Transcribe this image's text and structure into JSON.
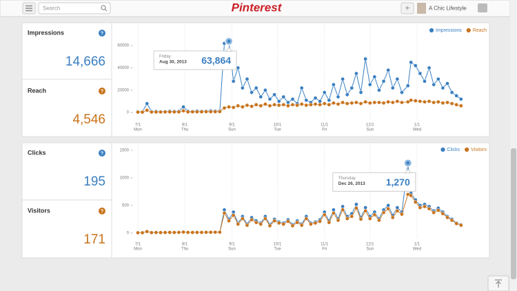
{
  "nav": {
    "search": "Search",
    "logo": "Pinterest",
    "add": "+",
    "user": "A Chic Lifestyle"
  },
  "panels": [
    {
      "metrics": [
        {
          "name": "Impressions",
          "value": "14,666",
          "help": "?"
        },
        {
          "name": "Reach",
          "value": "4,546",
          "help": "?"
        }
      ]
    },
    {
      "metrics": [
        {
          "name": "Clicks",
          "value": "195",
          "help": "?"
        },
        {
          "name": "Visitors",
          "value": "171",
          "help": "?"
        }
      ]
    }
  ],
  "chart_data": [
    {
      "type": "line",
      "x": [
        0,
        3,
        6,
        9,
        12,
        15,
        18,
        21,
        24,
        27,
        30,
        33,
        36,
        39,
        42,
        45,
        48,
        51,
        54,
        57,
        60,
        63,
        66,
        69,
        72,
        75,
        78,
        81,
        84,
        87,
        90,
        93,
        96,
        99,
        102,
        105,
        108,
        111,
        114,
        117,
        120,
        123,
        126,
        129,
        132,
        135,
        138,
        141,
        144,
        147,
        150,
        153,
        156,
        159,
        162,
        165,
        168,
        171,
        174,
        178,
        180,
        183,
        186,
        189,
        192,
        195,
        198,
        201,
        204,
        207,
        210,
        213
      ],
      "xlim": [
        0,
        214
      ],
      "xticks": [
        {
          "value": 0,
          "label": "7/1"
        },
        {
          "value": 31,
          "label": "8/1"
        },
        {
          "value": 62,
          "label": "9/1"
        },
        {
          "value": 92,
          "label": "10/1"
        },
        {
          "value": 123,
          "label": "11/1"
        },
        {
          "value": 153,
          "label": "12/1"
        },
        {
          "value": 184,
          "label": "1/1"
        }
      ],
      "xtick_weekdays": [
        "Mon",
        "Thu",
        "Sun",
        "Tue",
        "Fri",
        "Sun",
        "Wed"
      ],
      "ylim": [
        -5500,
        78000
      ],
      "yticks": [
        0,
        20000,
        40000,
        60000
      ],
      "legend": "top-right",
      "series": [
        {
          "name": "Impressions",
          "color": "#3a7fc1",
          "values": [
            800,
            700,
            8000,
            900,
            1000,
            800,
            900,
            1200,
            1000,
            1100,
            5000,
            1200,
            1000,
            1300,
            1100,
            1200,
            1500,
            1300,
            1400,
            62000,
            63864,
            28000,
            40000,
            22000,
            30000,
            18000,
            22000,
            14000,
            20000,
            12000,
            16000,
            10000,
            14000,
            9000,
            12000,
            8000,
            22000,
            11000,
            9000,
            13000,
            10000,
            18000,
            11000,
            25000,
            14000,
            30000,
            16000,
            22000,
            35000,
            18000,
            48000,
            25000,
            32000,
            20000,
            28000,
            38000,
            22000,
            30000,
            18000,
            24000,
            45000,
            42000,
            35000,
            28000,
            40000,
            25000,
            30000,
            22000,
            26000,
            18000,
            15000,
            12000
          ]
        },
        {
          "name": "Reach",
          "color": "#c8731c",
          "values": [
            300,
            300,
            2000,
            400,
            400,
            400,
            500,
            500,
            500,
            500,
            1500,
            500,
            600,
            600,
            600,
            700,
            700,
            700,
            800,
            4000,
            5000,
            4500,
            6000,
            5000,
            6500,
            5500,
            7000,
            6000,
            7500,
            6000,
            7000,
            6500,
            7000,
            6000,
            7000,
            6500,
            7500,
            6500,
            7000,
            7500,
            7000,
            8000,
            7000,
            8500,
            7500,
            9000,
            8000,
            8500,
            9000,
            8000,
            9500,
            8500,
            9000,
            9000,
            8500,
            9500,
            9000,
            10000,
            9000,
            9500,
            11000,
            10500,
            10000,
            9500,
            10000,
            9000,
            9500,
            8500,
            9000,
            8000,
            7000,
            6000
          ]
        }
      ],
      "tooltip": {
        "title": "Friday",
        "date": "Aug 30, 2013",
        "value": 63864,
        "label": "63,864"
      }
    },
    {
      "type": "line",
      "x": [
        0,
        3,
        6,
        9,
        12,
        15,
        18,
        21,
        24,
        27,
        30,
        33,
        36,
        39,
        42,
        45,
        48,
        51,
        54,
        57,
        60,
        63,
        66,
        69,
        72,
        75,
        78,
        81,
        84,
        87,
        90,
        93,
        96,
        99,
        102,
        105,
        108,
        111,
        114,
        117,
        120,
        123,
        126,
        129,
        132,
        135,
        138,
        141,
        144,
        147,
        150,
        153,
        156,
        159,
        162,
        165,
        168,
        171,
        174,
        178,
        180,
        183,
        186,
        189,
        192,
        195,
        198,
        201,
        204,
        207,
        210,
        213
      ],
      "xlim": [
        0,
        214
      ],
      "xticks": [
        {
          "value": 0,
          "label": "7/1"
        },
        {
          "value": 31,
          "label": "8/1"
        },
        {
          "value": 62,
          "label": "9/1"
        },
        {
          "value": 92,
          "label": "10/1"
        },
        {
          "value": 123,
          "label": "11/1"
        },
        {
          "value": 153,
          "label": "12/1"
        },
        {
          "value": 184,
          "label": "1/1"
        }
      ],
      "xtick_weekdays": [
        "Mon",
        "Thu",
        "Sun",
        "Tue",
        "Fri",
        "Sun",
        "Wed"
      ],
      "ylim": [
        -90,
        1600
      ],
      "yticks": [
        0,
        500,
        1000,
        1500
      ],
      "legend": "top-right",
      "series": [
        {
          "name": "Clicks",
          "color": "#3a7fc1",
          "values": [
            5,
            5,
            30,
            8,
            10,
            8,
            10,
            12,
            10,
            12,
            20,
            12,
            10,
            12,
            12,
            14,
            14,
            15,
            16,
            420,
            250,
            380,
            180,
            300,
            160,
            280,
            220,
            180,
            300,
            150,
            250,
            200,
            180,
            240,
            150,
            220,
            160,
            300,
            180,
            200,
            240,
            380,
            220,
            420,
            260,
            480,
            300,
            350,
            520,
            280,
            460,
            300,
            380,
            260,
            420,
            500,
            320,
            460,
            380,
            1270,
            720,
            600,
            500,
            520,
            480,
            400,
            450,
            380,
            300,
            250,
            180,
            150
          ]
        },
        {
          "name": "Visitors",
          "color": "#c8731c",
          "values": [
            4,
            4,
            25,
            6,
            8,
            7,
            8,
            10,
            9,
            10,
            16,
            10,
            9,
            10,
            10,
            12,
            12,
            13,
            14,
            360,
            220,
            320,
            160,
            260,
            140,
            240,
            190,
            160,
            260,
            130,
            220,
            180,
            160,
            210,
            130,
            190,
            140,
            260,
            160,
            180,
            210,
            330,
            190,
            360,
            230,
            420,
            260,
            300,
            450,
            250,
            400,
            260,
            330,
            230,
            370,
            440,
            280,
            400,
            340,
            700,
            680,
            560,
            460,
            480,
            440,
            370,
            410,
            350,
            280,
            230,
            170,
            140
          ]
        }
      ],
      "tooltip": {
        "title": "Thursday",
        "date": "Dec 26, 2013",
        "value": 1270,
        "label": "1,270"
      }
    }
  ]
}
